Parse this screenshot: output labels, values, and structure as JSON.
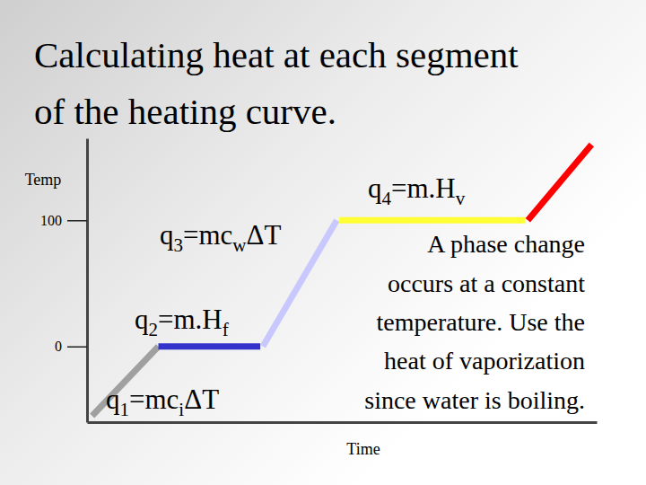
{
  "chart_data": {
    "type": "line",
    "title": [
      "Calculating heat at each segment",
      "of the heating curve."
    ],
    "y_label": "Temp",
    "x_label": "Time",
    "xlim": [
      0,
      100
    ],
    "ylim": [
      -60,
      165
    ],
    "yticks": [
      0,
      100
    ],
    "tick_labels": "y",
    "series": [
      {
        "color": "#a0a0a0",
        "x": [
          1,
          14
        ],
        "values": [
          -55,
          0
        ]
      },
      {
        "color": "#3333cc",
        "x": [
          14,
          34
        ],
        "values": [
          0,
          0
        ]
      },
      {
        "color": "#c8c8ff",
        "x": [
          34.5,
          49
        ],
        "values": [
          0,
          100
        ]
      },
      {
        "color": "#ffff33",
        "x": [
          49.5,
          86
        ],
        "values": [
          100,
          100
        ]
      },
      {
        "color": "#ff0000",
        "x": [
          86.5,
          99
        ],
        "values": [
          100,
          160
        ]
      }
    ],
    "annotations": [
      {
        "runs": [
          {
            "t": "q"
          },
          {
            "t": "1",
            "sub": true
          },
          {
            "t": "=mc"
          },
          {
            "t": "i",
            "sub": true
          },
          {
            "t": "ΔT"
          }
        ]
      },
      {
        "runs": [
          {
            "t": "q"
          },
          {
            "t": "2",
            "sub": true
          },
          {
            "t": "=m.H"
          },
          {
            "t": "f",
            "sub": true
          }
        ]
      },
      {
        "runs": [
          {
            "t": "q"
          },
          {
            "t": "3",
            "sub": true
          },
          {
            "t": "=mc"
          },
          {
            "t": "w",
            "sub": true
          },
          {
            "t": "ΔT"
          }
        ]
      },
      {
        "runs": [
          {
            "t": "q"
          },
          {
            "t": "4",
            "sub": true
          },
          {
            "t": "=m.H"
          },
          {
            "t": "v",
            "sub": true
          }
        ]
      }
    ],
    "note_lines": [
      "A phase change",
      "occurs at a constant",
      "temperature.  Use the",
      "heat of vaporization",
      "since water is boiling."
    ]
  }
}
